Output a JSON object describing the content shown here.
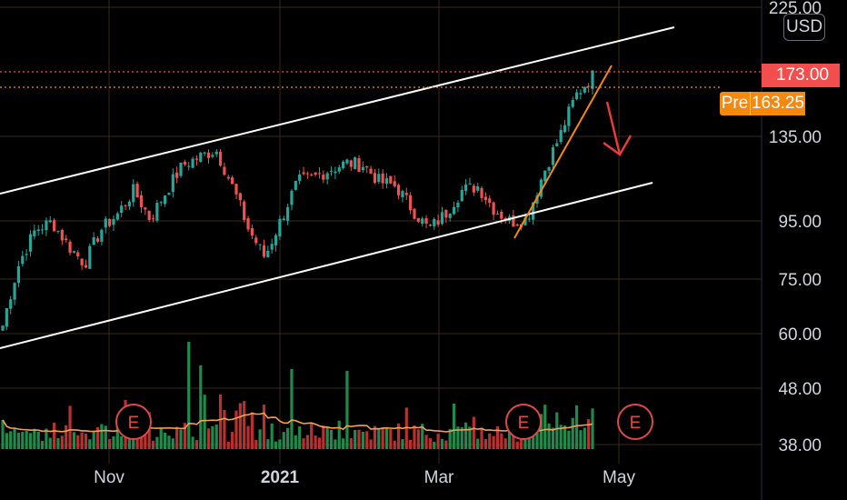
{
  "chart_data": {
    "type": "candlestick",
    "y_ticks": [
      "225.00",
      "135.00",
      "95.00",
      "75.00",
      "60.00",
      "48.00",
      "38.00"
    ],
    "x_ticks": [
      "Nov",
      "2021",
      "Mar",
      "May"
    ],
    "last_price": "173.00",
    "premarket": {
      "label": "Pre",
      "value": "163.25"
    },
    "currency": "USD",
    "earnings_marker": "E",
    "colors": {
      "up": "#26a69a",
      "down": "#ef5350",
      "channel": "#ffffff",
      "trendline": "#f5890f",
      "ma": "#f5a050",
      "grid": "#3a2a1a"
    },
    "annotations": [
      "upward parallel channel (white)",
      "rising trendline (orange)",
      "downward arrow (red)"
    ],
    "ohlc_anchor_closes": [
      62,
      80,
      92,
      95,
      86,
      80,
      92,
      98,
      108,
      96,
      108,
      120,
      124,
      128,
      110,
      92,
      82,
      96,
      112,
      114,
      118,
      121,
      120,
      112,
      110,
      100,
      92,
      98,
      108,
      110,
      100,
      95,
      96,
      116,
      135,
      160,
      173
    ]
  }
}
